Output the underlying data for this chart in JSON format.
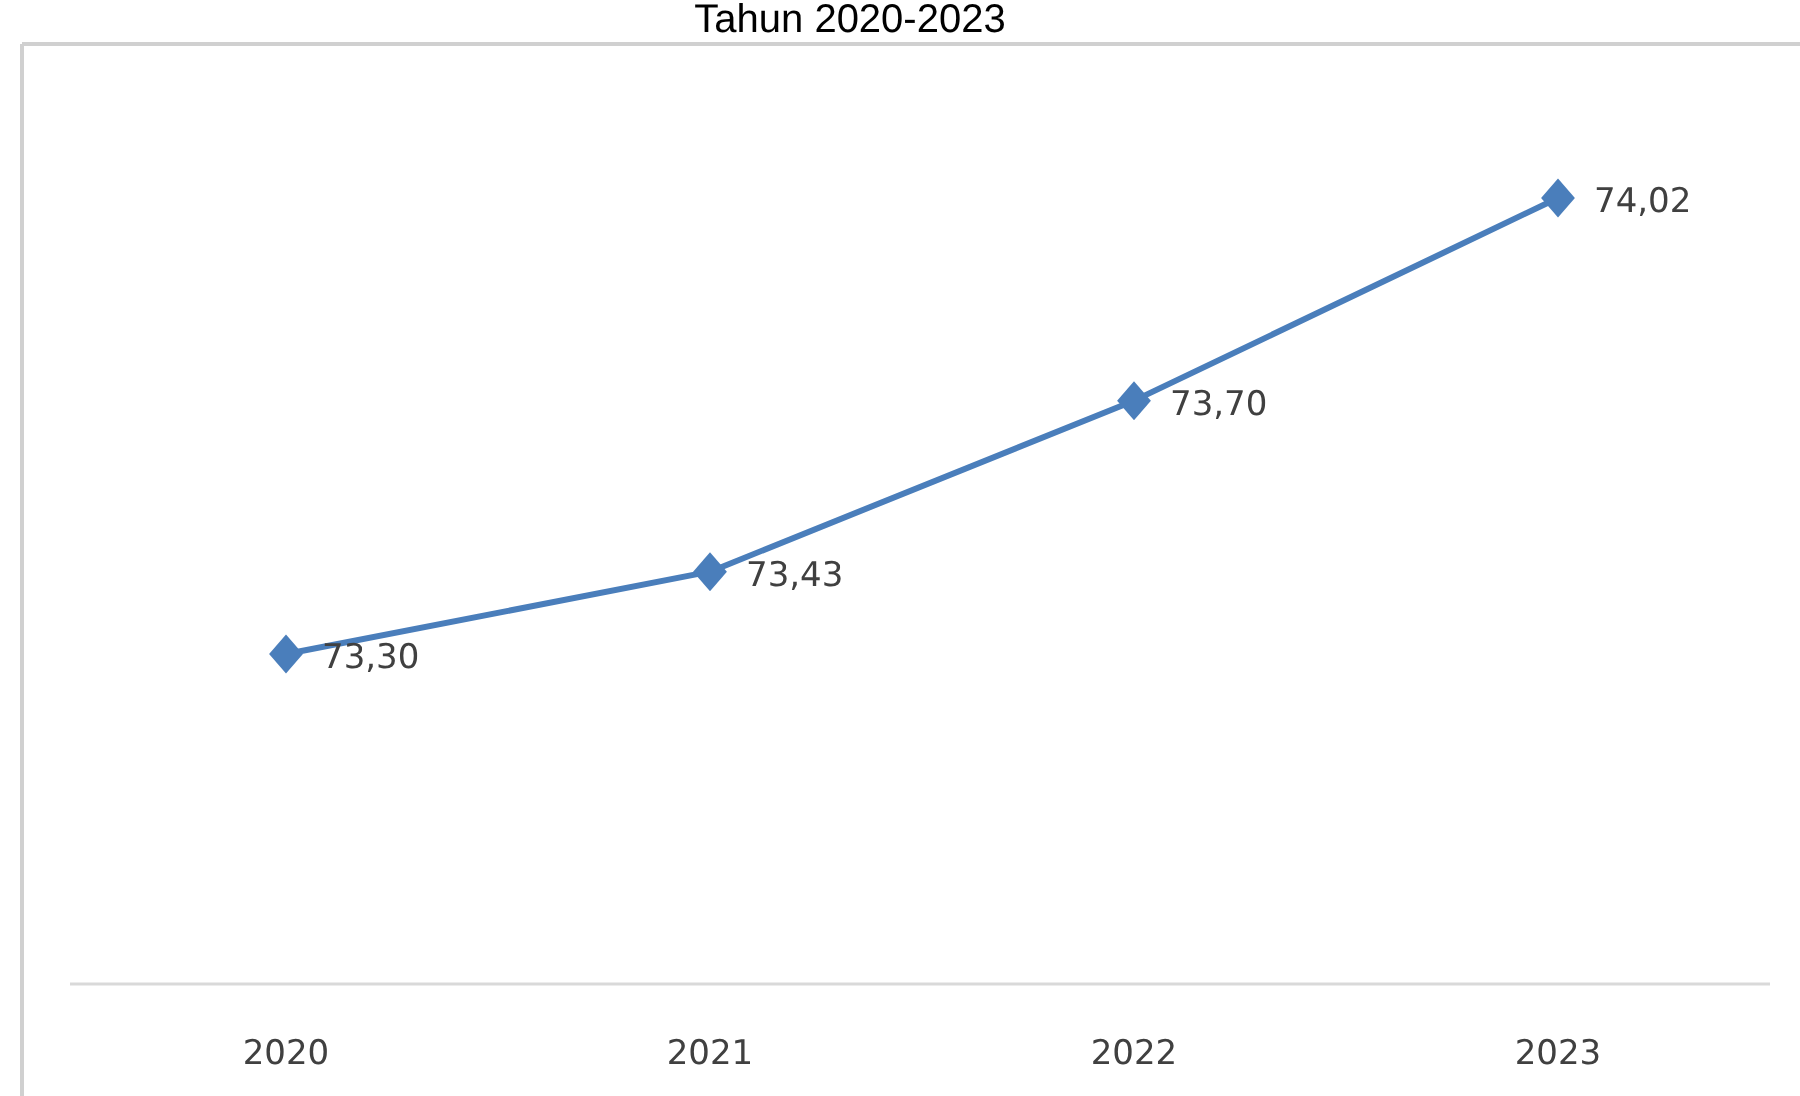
{
  "chart_data": {
    "type": "line",
    "title": "Tahun 2020-2023",
    "categories": [
      "2020",
      "2021",
      "2022",
      "2023"
    ],
    "series": [
      {
        "color": "#4a7ebb",
        "values": [
          73.3,
          73.43,
          73.7,
          74.02
        ],
        "value_labels": [
          "73,30",
          "73,43",
          "73,70",
          "74,02"
        ]
      }
    ],
    "marker": "diamond",
    "line_style": "solid"
  }
}
